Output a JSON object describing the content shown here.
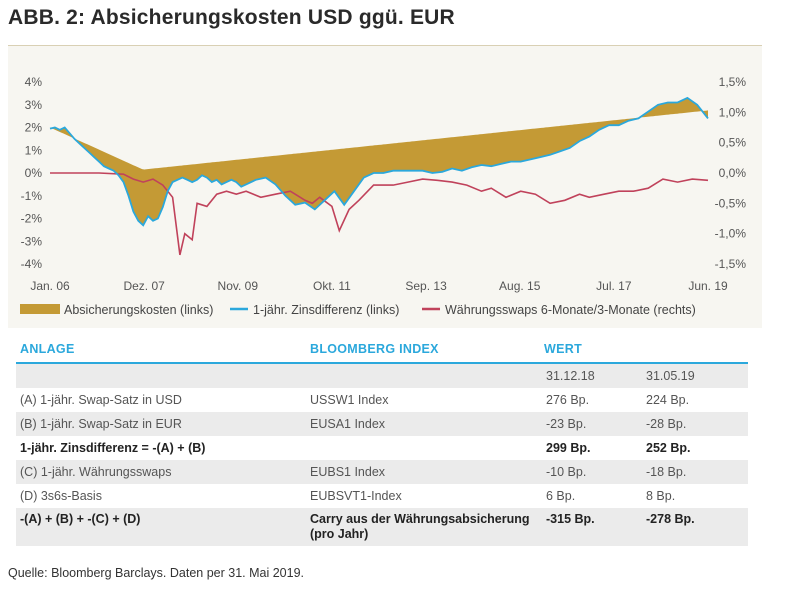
{
  "title": "ABB. 2: Absicherungskosten USD ggü. EUR",
  "chart_data": {
    "type": "line",
    "x_tick_labels": [
      "Jan. 06",
      "Dez. 07",
      "Nov. 09",
      "Okt. 11",
      "Sep. 13",
      "Aug. 15",
      "Jul. 17",
      "Jun. 19"
    ],
    "x_tick_times": [
      2006.0,
      2007.92,
      2009.83,
      2011.75,
      2013.67,
      2015.58,
      2017.5,
      2019.42
    ],
    "y_left": {
      "ticks": [
        "4%",
        "3%",
        "2%",
        "1%",
        "0%",
        "-1%",
        "-2%",
        "-3%",
        "-4%"
      ],
      "range": [
        -4,
        4
      ]
    },
    "y_right": {
      "ticks": [
        "1,5%",
        "1,0%",
        "0,5%",
        "0,0%",
        "-0,5%",
        "-1,0%",
        "-1,5%"
      ],
      "range": [
        -1.5,
        1.5
      ]
    },
    "hedge_line": {
      "t": [
        2006.0,
        2007.9,
        2019.42
      ],
      "v": [
        2.0,
        0.15,
        2.75
      ]
    },
    "series": [
      {
        "name": "1-jähr. Zinsdifferenz (links)",
        "axis": "left",
        "color": "#2ba8dc",
        "t": [
          2006.0,
          2006.1,
          2006.2,
          2006.3,
          2006.4,
          2006.5,
          2006.6,
          2006.7,
          2006.8,
          2006.9,
          2007.0,
          2007.1,
          2007.2,
          2007.3,
          2007.4,
          2007.5,
          2007.6,
          2007.7,
          2007.8,
          2007.9,
          2008.0,
          2008.1,
          2008.2,
          2008.3,
          2008.4,
          2008.5,
          2008.6,
          2008.7,
          2008.8,
          2008.9,
          2009.0,
          2009.1,
          2009.2,
          2009.3,
          2009.4,
          2009.5,
          2009.6,
          2009.7,
          2009.8,
          2009.9,
          2010.0,
          2010.2,
          2010.4,
          2010.6,
          2010.8,
          2011.0,
          2011.2,
          2011.4,
          2011.6,
          2011.8,
          2012.0,
          2012.2,
          2012.4,
          2012.6,
          2012.8,
          2013.0,
          2013.2,
          2013.4,
          2013.6,
          2013.8,
          2014.0,
          2014.2,
          2014.4,
          2014.6,
          2014.8,
          2015.0,
          2015.2,
          2015.4,
          2015.6,
          2015.8,
          2016.0,
          2016.2,
          2016.4,
          2016.6,
          2016.8,
          2017.0,
          2017.2,
          2017.4,
          2017.6,
          2017.8,
          2018.0,
          2018.2,
          2018.4,
          2018.6,
          2018.8,
          2019.0,
          2019.2,
          2019.42
        ],
        "values": [
          1.95,
          2.0,
          1.9,
          2.0,
          1.75,
          1.5,
          1.3,
          1.1,
          0.9,
          0.7,
          0.5,
          0.3,
          0.2,
          0.1,
          -0.1,
          -0.4,
          -1.0,
          -1.7,
          -2.1,
          -2.3,
          -1.9,
          -2.1,
          -2.0,
          -1.5,
          -0.8,
          -0.4,
          -0.3,
          -0.2,
          -0.3,
          -0.4,
          -0.3,
          -0.1,
          -0.2,
          -0.4,
          -0.3,
          -0.5,
          -0.4,
          -0.3,
          -0.4,
          -0.6,
          -0.5,
          -0.3,
          -0.2,
          -0.5,
          -1.0,
          -1.4,
          -1.3,
          -1.6,
          -1.2,
          -0.8,
          -1.4,
          -0.8,
          -0.2,
          0.0,
          0.0,
          0.1,
          0.1,
          0.1,
          0.1,
          0.0,
          0.05,
          0.2,
          0.1,
          0.25,
          0.35,
          0.3,
          0.4,
          0.5,
          0.5,
          0.6,
          0.7,
          0.8,
          0.95,
          1.1,
          1.4,
          1.6,
          1.9,
          2.1,
          2.1,
          2.3,
          2.4,
          2.7,
          3.0,
          3.1,
          3.1,
          3.3,
          3.0,
          2.4
        ]
      },
      {
        "name": "Währungsswaps 6-Monate/3-Monate (rechts)",
        "axis": "right",
        "color": "#c0425b",
        "t": [
          2006.0,
          2006.5,
          2007.0,
          2007.5,
          2007.7,
          2007.9,
          2008.1,
          2008.3,
          2008.5,
          2008.65,
          2008.75,
          2008.9,
          2009.0,
          2009.2,
          2009.4,
          2009.6,
          2009.8,
          2010.0,
          2010.3,
          2010.6,
          2010.9,
          2011.0,
          2011.2,
          2011.35,
          2011.5,
          2011.75,
          2011.9,
          2012.1,
          2012.3,
          2012.6,
          2013.0,
          2013.3,
          2013.6,
          2013.9,
          2014.2,
          2014.5,
          2014.8,
          2015.0,
          2015.3,
          2015.6,
          2015.9,
          2016.2,
          2016.5,
          2016.8,
          2017.0,
          2017.3,
          2017.6,
          2017.9,
          2018.2,
          2018.5,
          2018.8,
          2019.1,
          2019.42
        ],
        "values": [
          0.0,
          0.0,
          0.0,
          -0.02,
          -0.1,
          -0.15,
          -0.1,
          -0.2,
          -0.4,
          -1.35,
          -1.0,
          -1.1,
          -0.5,
          -0.55,
          -0.35,
          -0.3,
          -0.35,
          -0.3,
          -0.4,
          -0.35,
          -0.3,
          -0.35,
          -0.45,
          -0.5,
          -0.4,
          -0.55,
          -0.95,
          -0.6,
          -0.45,
          -0.2,
          -0.2,
          -0.15,
          -0.1,
          -0.12,
          -0.15,
          -0.2,
          -0.3,
          -0.25,
          -0.4,
          -0.3,
          -0.35,
          -0.5,
          -0.45,
          -0.35,
          -0.4,
          -0.35,
          -0.3,
          -0.3,
          -0.25,
          -0.1,
          -0.15,
          -0.1,
          -0.12
        ]
      }
    ],
    "legend": [
      "Absicherungskosten (links)",
      "1-jähr. Zinsdifferenz (links)",
      "Währungsswaps 6-Monate/3-Monate (rechts)"
    ]
  },
  "table": {
    "headers": {
      "anlage": "ANLAGE",
      "index": "BLOOMBERG INDEX",
      "wert": "WERT"
    },
    "dates": {
      "d1": "31.12.18",
      "d2": "31.05.19"
    },
    "rows": [
      {
        "label": "(A) 1-jähr. Swap-Satz in USD",
        "index": "USSW1 Index",
        "v1": "276 Bp.",
        "v2": "224 Bp."
      },
      {
        "label": "(B) 1-jähr. Swap-Satz in EUR",
        "index": "EUSA1 Index",
        "v1": "-23 Bp.",
        "v2": "-28 Bp."
      },
      {
        "label": "1-jähr. Zinsdifferenz = -(A) + (B)",
        "index": "",
        "v1": "299 Bp.",
        "v2": "252 Bp."
      },
      {
        "label": "(C) 1-jähr. Währungsswaps",
        "index": "EUBS1 Index",
        "v1": "-10 Bp.",
        "v2": "-18 Bp."
      },
      {
        "label": "(D) 3s6s-Basis",
        "index": "EUBSVT1-Index",
        "v1": "6 Bp.",
        "v2": "8 Bp."
      },
      {
        "label": "-(A) + (B) + -(C) + (D)",
        "index": "Carry aus der Währungsabsicherung (pro Jahr)",
        "v1": "-315 Bp.",
        "v2": "-278 Bp."
      }
    ]
  },
  "source": "Quelle: Bloomberg Barclays. Daten per 31. Mai 2019.",
  "colors": {
    "hedge_fill": "#c49a35",
    "diff_line": "#2ba8dc",
    "swap_line": "#c0425b",
    "header_blue": "#2ba8dc"
  }
}
